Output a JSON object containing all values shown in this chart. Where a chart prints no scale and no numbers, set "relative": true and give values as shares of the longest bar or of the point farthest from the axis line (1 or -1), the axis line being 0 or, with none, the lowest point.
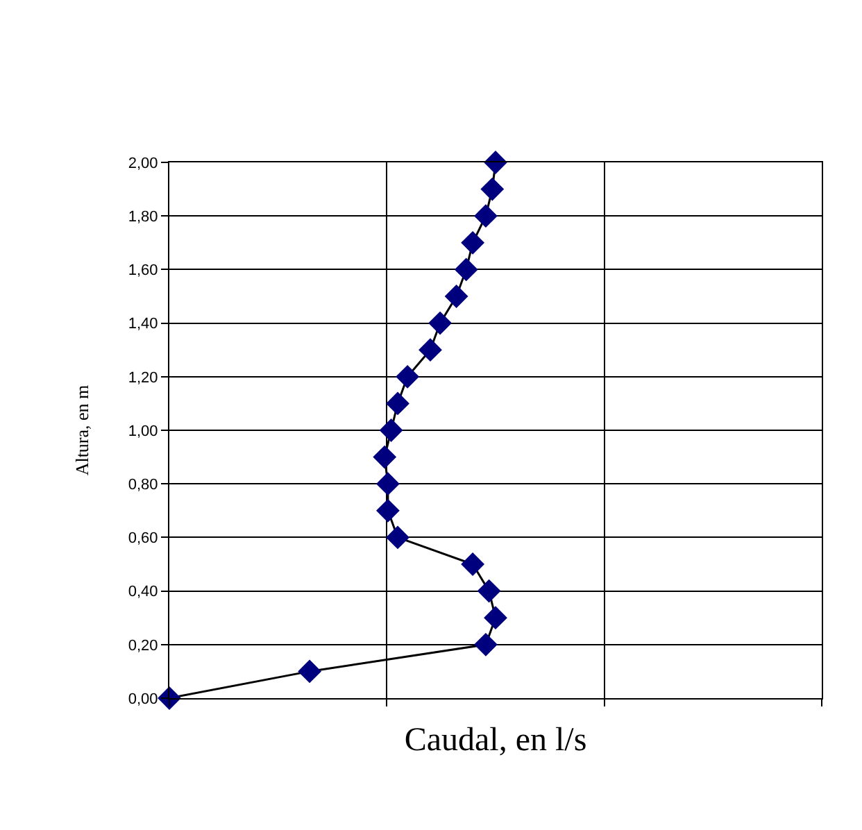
{
  "chart_data": {
    "type": "line",
    "orientation": "horizontal",
    "relative": true,
    "xlabel": "Caudal, en l/s",
    "ylabel": "Altura, en m",
    "categories": [
      "2,00",
      null,
      "1,80",
      null,
      "1,60",
      null,
      "1,40",
      null,
      "1,20",
      null,
      "1,00",
      null,
      "0,80",
      null,
      "0,60",
      null,
      "0,40",
      null,
      "0,20",
      null,
      "0,00"
    ],
    "series": [
      {
        "color": "#00007f",
        "values": [
          1,
          0.99,
          0.97,
          0.93,
          0.91,
          0.88,
          0.83,
          0.8,
          0.73,
          0.7,
          0.68,
          0.66,
          0.67,
          0.67,
          0.7,
          0.93,
          0.98,
          1,
          0.97,
          0.43,
          0
        ]
      }
    ],
    "grid": true,
    "legend": false,
    "marker": "diamond",
    "line_style": "solid"
  }
}
